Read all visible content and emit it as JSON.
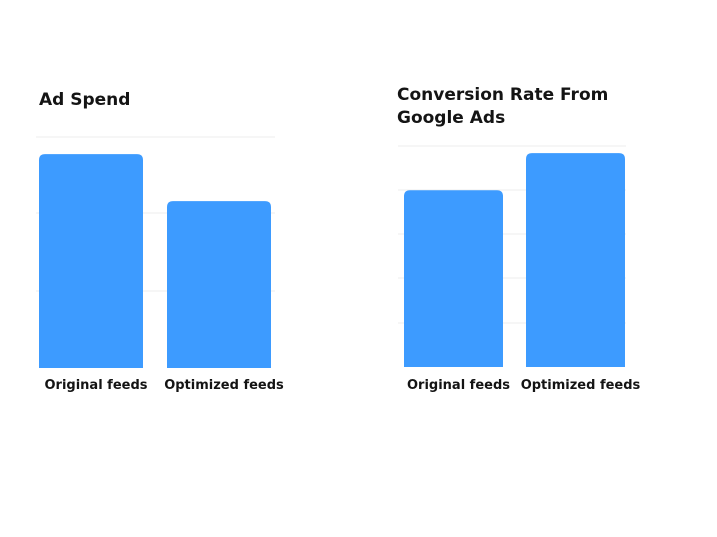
{
  "chart_data": [
    {
      "type": "bar",
      "title": "Ad Spend",
      "categories": [
        "Original feeds",
        "Optimized feeds"
      ],
      "values": [
        100,
        78
      ],
      "xlabel": "",
      "ylabel": "",
      "ylim": [
        0,
        108
      ],
      "grid": true,
      "color": "#3d9bff"
    },
    {
      "type": "bar",
      "title": "Conversion Rate From Google Ads",
      "categories": [
        "Original feeds",
        "Optimized feeds"
      ],
      "values": [
        100,
        121
      ],
      "xlabel": "",
      "ylabel": "",
      "ylim": [
        0,
        125
      ],
      "grid": true,
      "color": "#3d9bff"
    }
  ]
}
